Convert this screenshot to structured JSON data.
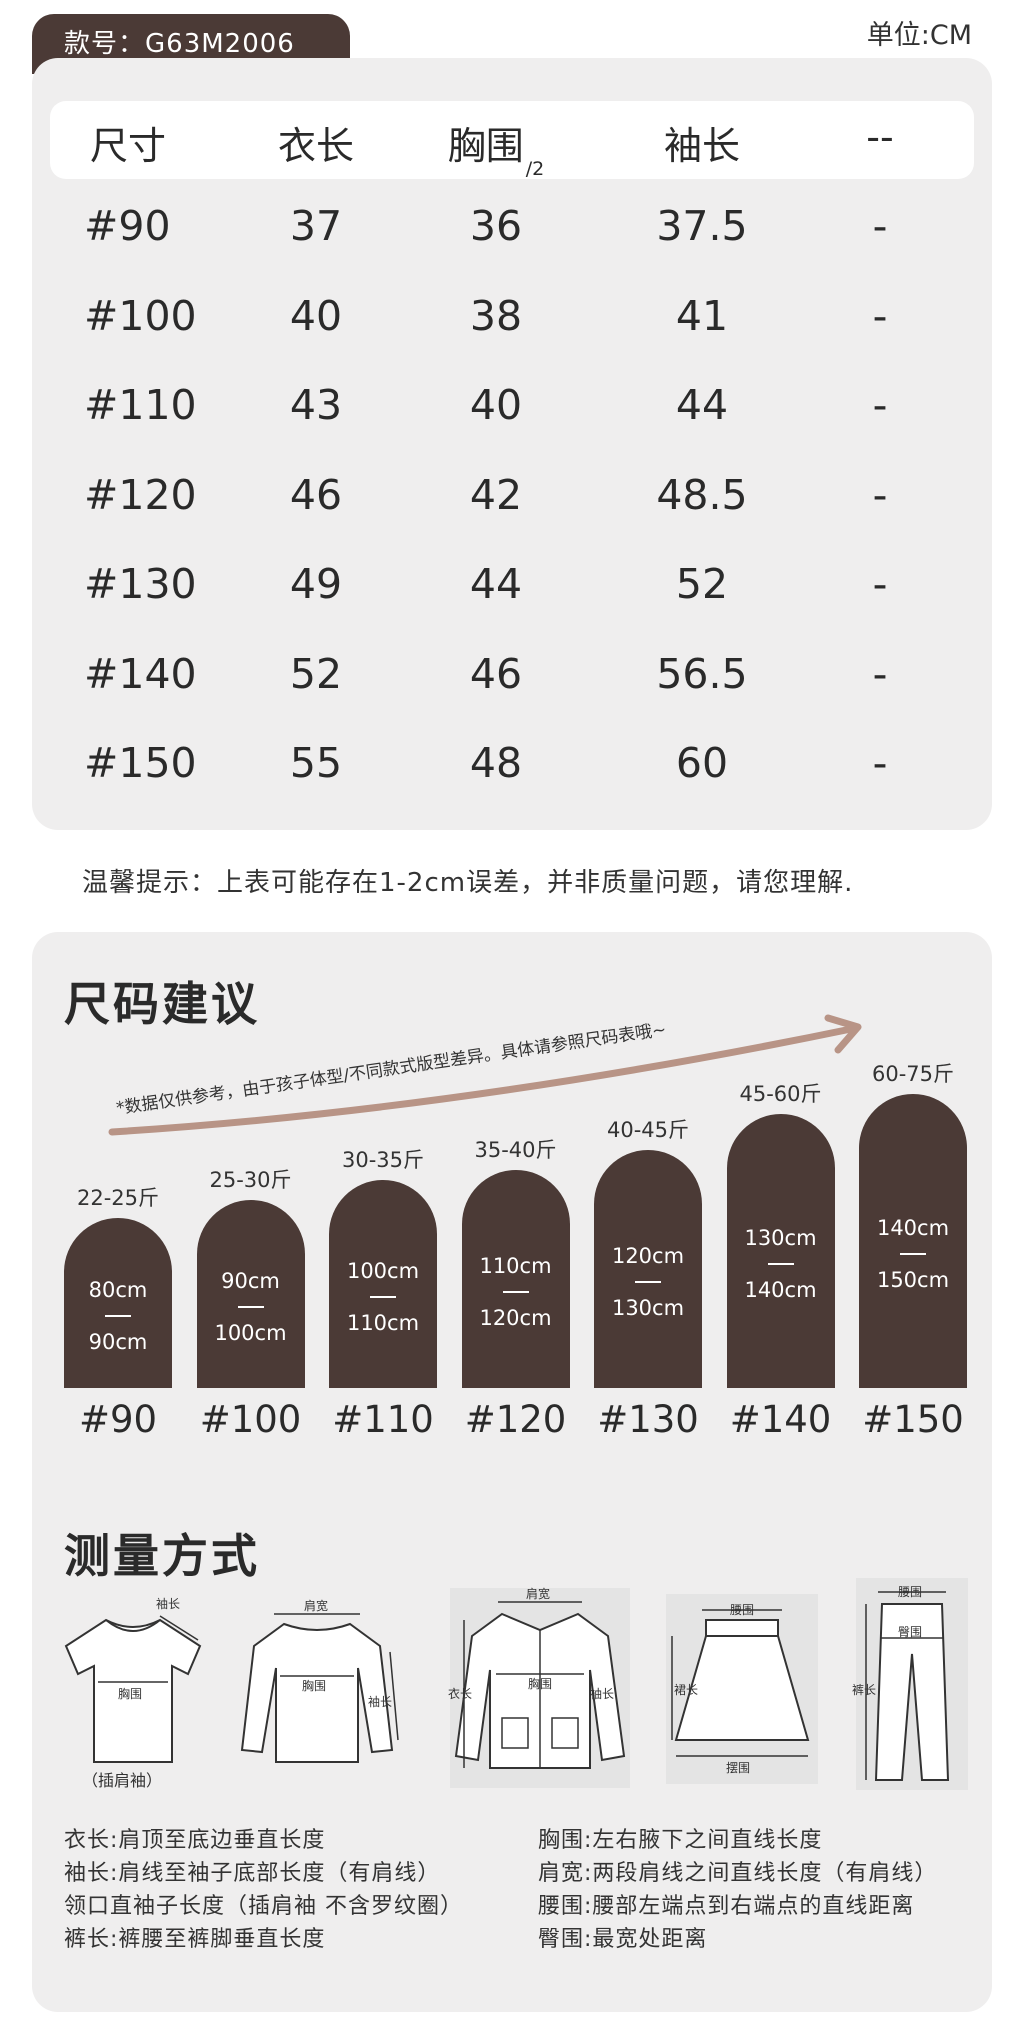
{
  "header": {
    "model": "款号：G63M2006",
    "unit": "单位:CM"
  },
  "size_table": {
    "columns": [
      "尺寸",
      "衣长",
      "胸围",
      "袖长",
      "--"
    ],
    "chest_suffix": "/2",
    "rows": [
      [
        "#90",
        "37",
        "36",
        "37.5",
        "-"
      ],
      [
        "#100",
        "40",
        "38",
        "41",
        "-"
      ],
      [
        "#110",
        "43",
        "40",
        "44",
        "-"
      ],
      [
        "#120",
        "46",
        "42",
        "48.5",
        "-"
      ],
      [
        "#130",
        "49",
        "44",
        "52",
        "-"
      ],
      [
        "#140",
        "52",
        "46",
        "56.5",
        "-"
      ],
      [
        "#150",
        "55",
        "48",
        "60",
        "-"
      ]
    ]
  },
  "tip": "温馨提示：上表可能存在1-2cm误差，并非质量问题，请您理解.",
  "size_advice": {
    "title": "尺码建议",
    "note": "*数据仅供参考，由于孩子体型/不同款式版型差异。具体请参照尺码表哦~",
    "bars": [
      {
        "weight": "22-25斤",
        "height_top": "80cm",
        "height_bottom": "90cm",
        "size": "#90"
      },
      {
        "weight": "25-30斤",
        "height_top": "90cm",
        "height_bottom": "100cm",
        "size": "#100"
      },
      {
        "weight": "30-35斤",
        "height_top": "100cm",
        "height_bottom": "110cm",
        "size": "#110"
      },
      {
        "weight": "35-40斤",
        "height_top": "110cm",
        "height_bottom": "120cm",
        "size": "#120"
      },
      {
        "weight": "40-45斤",
        "height_top": "120cm",
        "height_bottom": "130cm",
        "size": "#130"
      },
      {
        "weight": "45-60斤",
        "height_top": "130cm",
        "height_bottom": "140cm",
        "size": "#140"
      },
      {
        "weight": "60-75斤",
        "height_top": "140cm",
        "height_bottom": "150cm",
        "size": "#150"
      }
    ]
  },
  "measure": {
    "title": "测量方式",
    "icon_labels": {
      "sleeve": "袖长",
      "chest": "胸围",
      "shoulder": "肩宽",
      "length": "衣长",
      "waist": "腰围",
      "skirt_length": "裙长",
      "hem": "摆围",
      "pants_length": "裤长",
      "hip": "臀围",
      "raglan": "（插肩袖）"
    },
    "icons": [
      "raglan-tshirt-icon",
      "sweater-icon",
      "jacket-icon",
      "skirt-icon",
      "pants-icon"
    ],
    "definitions_left": [
      "衣长:肩顶至底边垂直长度",
      "袖长:肩线至袖子底部长度（有肩线）",
      "领口直袖子长度（插肩袖 不含罗纹圈）",
      "裤长:裤腰至裤脚垂直长度"
    ],
    "definitions_right": [
      "胸围:左右腋下之间直线长度",
      "肩宽:两段肩线之间直线长度（有肩线）",
      "腰围:腰部左端点到右端点的直线距离",
      "臀围:最宽处距离"
    ]
  },
  "colors": {
    "brown": "#4b3a36",
    "panel": "#efeeee",
    "arrow": "#b89486"
  }
}
